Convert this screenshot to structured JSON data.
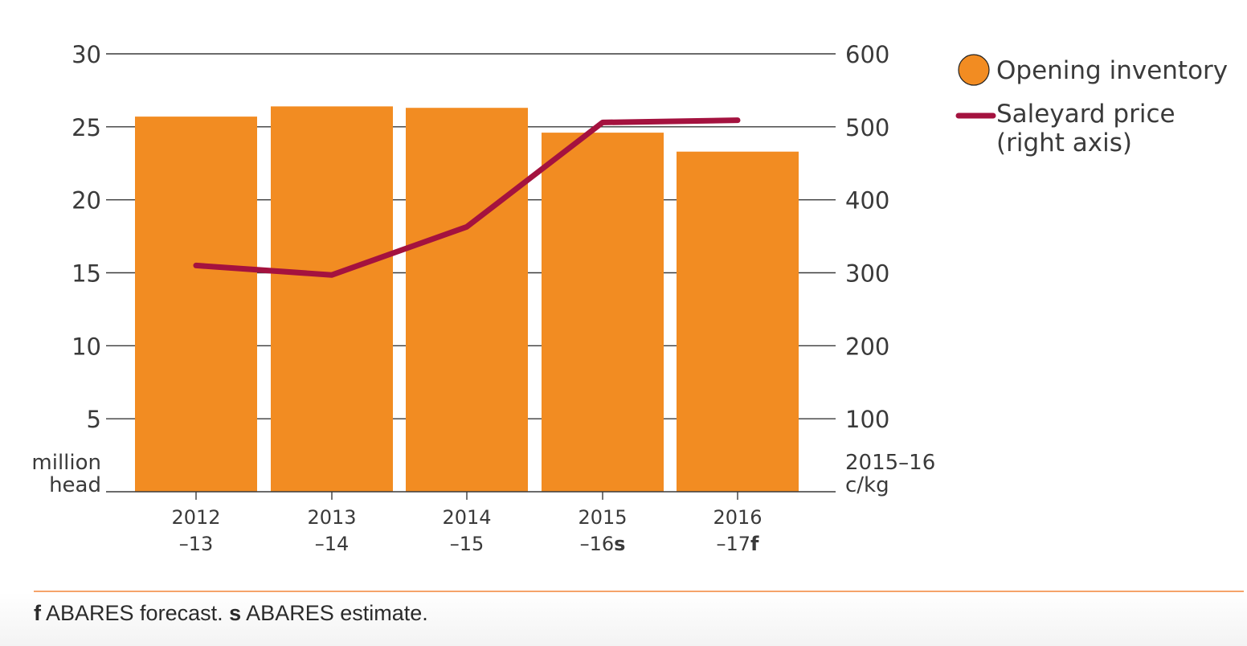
{
  "chart_data": {
    "type": "bar",
    "categories": [
      {
        "line1": "2012",
        "line2": "–13",
        "mark": ""
      },
      {
        "line1": "2013",
        "line2": "–14",
        "mark": ""
      },
      {
        "line1": "2014",
        "line2": "–15",
        "mark": ""
      },
      {
        "line1": "2015",
        "line2": "–16",
        "mark": "s"
      },
      {
        "line1": "2016",
        "line2": "–17",
        "mark": "f"
      }
    ],
    "series": [
      {
        "name": "Opening inventory",
        "type": "bar",
        "axis": "left",
        "values": [
          25.7,
          26.4,
          26.3,
          24.6,
          23.3
        ]
      },
      {
        "name": "Saleyard price",
        "name_line2": "(right axis)",
        "type": "line",
        "axis": "right",
        "values": [
          310,
          297,
          363,
          506,
          509
        ]
      }
    ],
    "y_left": {
      "ylim": [
        0,
        30
      ],
      "ticks": [
        "30",
        "25",
        "20",
        "15",
        "10",
        "5"
      ],
      "unit_line1": "million",
      "unit_line2": "head"
    },
    "y_right": {
      "ylim": [
        0,
        600
      ],
      "ticks": [
        "600",
        "500",
        "400",
        "300",
        "200",
        "100"
      ],
      "unit_line1": "2015–16",
      "unit_line2": "c/kg"
    },
    "grid": true,
    "legend": "top-right",
    "colors": {
      "bar": "#f28c22",
      "line": "#a4123f",
      "grid": "#3a3a3a",
      "rule": "#f5a36a"
    }
  },
  "footnote": {
    "f_mark": "f",
    "f_text": "ABARES forecast.",
    "s_mark": "s",
    "s_text": "ABARES estimate."
  }
}
